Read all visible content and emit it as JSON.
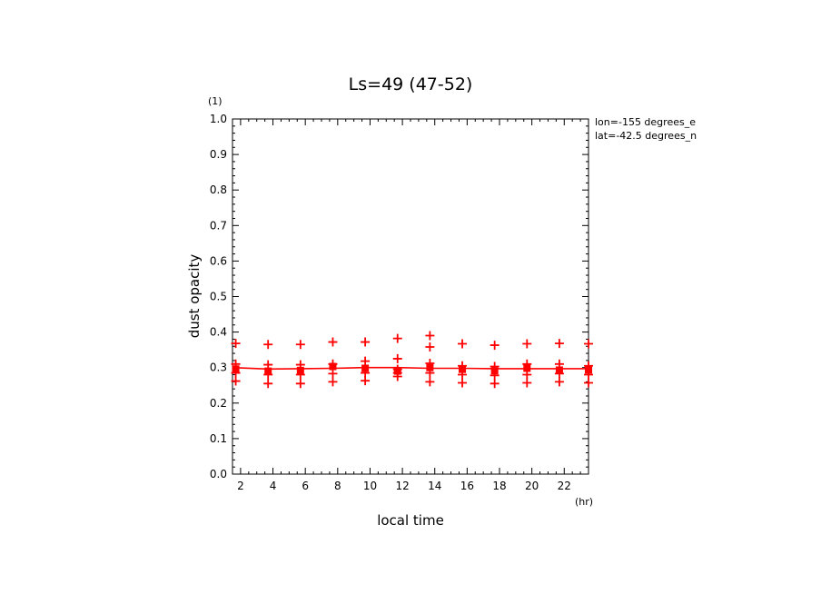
{
  "chart_data": {
    "type": "scatter",
    "title": "Ls=49 (47-52)",
    "xlabel": "local time",
    "ylabel": "dust opacity",
    "x_unit": "(hr)",
    "y_unit": "(1)",
    "annotations": [
      "lon=-155 degrees_e",
      "lat=-42.5 degrees_n"
    ],
    "xlim": [
      1.5,
      23.5
    ],
    "ylim": [
      0,
      1.0
    ],
    "x_ticks": [
      2,
      4,
      6,
      8,
      10,
      12,
      14,
      16,
      18,
      20,
      22
    ],
    "x_tick_labels": [
      "2",
      "4",
      "6",
      "8",
      "10",
      "12",
      "14",
      "16",
      "18",
      "20",
      "22"
    ],
    "y_ticks": [
      0.0,
      0.1,
      0.2,
      0.3,
      0.4,
      0.5,
      0.6,
      0.7,
      0.8,
      0.9,
      1.0
    ],
    "y_tick_labels": [
      "0.0",
      "0.1",
      "0.2",
      "0.3",
      "0.4",
      "0.5",
      "0.6",
      "0.7",
      "0.8",
      "0.9",
      "1.0"
    ],
    "color": "#ff0000",
    "series": [
      {
        "marker": "line",
        "x": [
          1.5,
          2.0,
          3.7,
          5.7,
          7.7,
          9.7,
          11.7,
          13.7,
          15.7,
          17.7,
          19.7,
          21.7,
          23.5
        ],
        "y": [
          0.3,
          0.299,
          0.296,
          0.297,
          0.298,
          0.3,
          0.3,
          0.298,
          0.298,
          0.297,
          0.297,
          0.297,
          0.297
        ]
      },
      {
        "marker": "square",
        "x": [
          1.7,
          3.7,
          5.7,
          7.7,
          9.7,
          11.7,
          13.7,
          15.7,
          17.7,
          19.7,
          21.7,
          23.5
        ],
        "y": [
          0.296,
          0.29,
          0.292,
          0.303,
          0.298,
          0.29,
          0.3,
          0.295,
          0.291,
          0.298,
          0.293,
          0.293
        ]
      },
      {
        "marker": "plus",
        "x": [
          1.7,
          1.7,
          1.7,
          1.7,
          3.7,
          3.7,
          3.7,
          3.7,
          5.7,
          5.7,
          5.7,
          5.7,
          7.7,
          7.7,
          7.7,
          7.7,
          9.7,
          9.7,
          9.7,
          9.7,
          11.7,
          11.7,
          11.7,
          11.7,
          11.7,
          13.7,
          13.7,
          13.7,
          13.7,
          13.7,
          15.7,
          15.7,
          15.7,
          15.7,
          17.7,
          17.7,
          17.7,
          17.7,
          19.7,
          19.7,
          19.7,
          19.7,
          21.7,
          21.7,
          21.7,
          21.7,
          23.5,
          23.5,
          23.5,
          23.5
        ],
        "y": [
          0.368,
          0.31,
          0.285,
          0.262,
          0.365,
          0.308,
          0.28,
          0.255,
          0.365,
          0.308,
          0.28,
          0.255,
          0.372,
          0.31,
          0.283,
          0.26,
          0.372,
          0.318,
          0.285,
          0.263,
          0.382,
          0.325,
          0.295,
          0.275,
          0.285,
          0.39,
          0.358,
          0.312,
          0.285,
          0.26,
          0.367,
          0.305,
          0.28,
          0.257,
          0.363,
          0.303,
          0.278,
          0.255,
          0.367,
          0.31,
          0.28,
          0.257,
          0.368,
          0.31,
          0.283,
          0.26,
          0.367,
          0.305,
          0.28,
          0.257
        ]
      }
    ]
  }
}
